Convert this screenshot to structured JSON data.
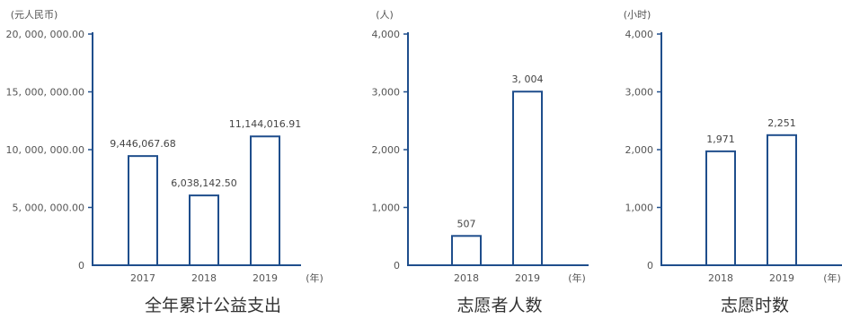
{
  "colors": {
    "axis": "#1f4e8c",
    "bar_fill": "#ffffff",
    "bar_stroke": "#1f4e8c",
    "text": "#555555"
  },
  "chart_data": [
    {
      "type": "bar",
      "title": "全年累计公益支出",
      "unit": "(元人民币)",
      "x_unit": "(年)",
      "categories": [
        "2017",
        "2018",
        "2019"
      ],
      "values": [
        9446067.68,
        6038142.5,
        11144016.91
      ],
      "value_labels": [
        "9,446,067.68",
        "6,038,142.50",
        "11,144,016.91"
      ],
      "ylim": [
        0,
        20000000
      ],
      "y_ticks": [
        0,
        5000000,
        10000000,
        15000000,
        20000000
      ],
      "y_tick_labels": [
        "0",
        "5, 000, 000.00",
        "10, 000, 000.00",
        "15, 000, 000.00",
        "20, 000, 000.00"
      ]
    },
    {
      "type": "bar",
      "title": "志愿者人数",
      "unit": "(人)",
      "x_unit": "(年)",
      "categories": [
        "2018",
        "2019"
      ],
      "values": [
        507,
        3004
      ],
      "value_labels": [
        "507",
        "3, 004"
      ],
      "ylim": [
        0,
        4000
      ],
      "y_ticks": [
        0,
        1000,
        2000,
        3000,
        4000
      ],
      "y_tick_labels": [
        "0",
        "1,000",
        "2,000",
        "3,000",
        "4,000"
      ]
    },
    {
      "type": "bar",
      "title": "志愿时数",
      "unit": "(小时)",
      "x_unit": "(年)",
      "categories": [
        "2018",
        "2019"
      ],
      "values": [
        1971,
        2251
      ],
      "value_labels": [
        "1,971",
        "2,251"
      ],
      "ylim": [
        0,
        4000
      ],
      "y_ticks": [
        0,
        1000,
        2000,
        3000,
        4000
      ],
      "y_tick_labels": [
        "0",
        "1,000",
        "2,000",
        "3,000",
        "4,000"
      ]
    }
  ]
}
